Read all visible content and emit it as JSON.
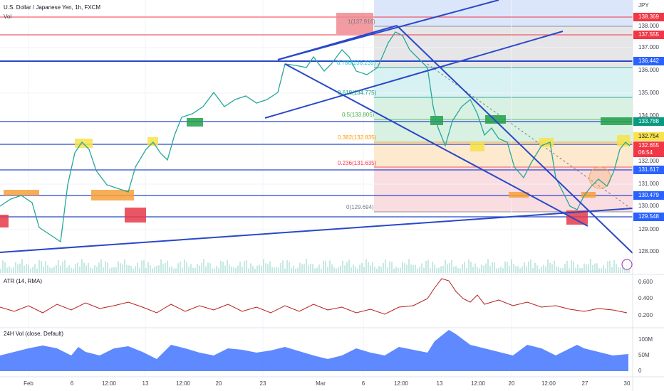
{
  "header": {
    "symbol": "U.S. Dollar / Japanese Yen, 1h, FXCM",
    "volume": "Vol",
    "currency": "JPY"
  },
  "price_axis": [
    "138.000",
    "137.000",
    "136.000",
    "135.000",
    "134.000",
    "132.000",
    "131.000",
    "130.000",
    "129.000",
    "128.000"
  ],
  "price_labels": [
    {
      "text": "138.369",
      "color": "#f23645"
    },
    {
      "text": "137.555",
      "color": "#f23645"
    },
    {
      "text": "136.442",
      "color": "#2962ff"
    },
    {
      "text": "133.788",
      "color": "#089981"
    },
    {
      "text": "132.754",
      "color": "#f7e34a"
    },
    {
      "text": "132.655",
      "color": "#f23645"
    },
    {
      "text": "131.617",
      "color": "#2962ff"
    },
    {
      "text": "130.479",
      "color": "#2962ff"
    },
    {
      "text": "129.548",
      "color": "#2962ff"
    }
  ],
  "countdown": "06:54",
  "fib_labels": [
    "1(137.916)",
    "0.786(136.239)",
    "0.618(134.775)",
    "0.5(133.805)",
    "0.382(132.835)",
    "0.236(131.635)",
    "0(129.694)"
  ],
  "atr": {
    "title": "ATR (14, RMA)",
    "ticks": [
      "0.600",
      "0.400",
      "0.200"
    ]
  },
  "vol24": {
    "title": "24H Vol (close, Default)",
    "ticks": [
      "100M",
      "50M",
      "0"
    ]
  },
  "time_axis": [
    "Feb",
    "6",
    "12:00",
    "13",
    "12:00",
    "20",
    "23",
    "Mar",
    "6",
    "12:00",
    "13",
    "12:00",
    "20",
    "12:00",
    "27",
    "30"
  ]
}
